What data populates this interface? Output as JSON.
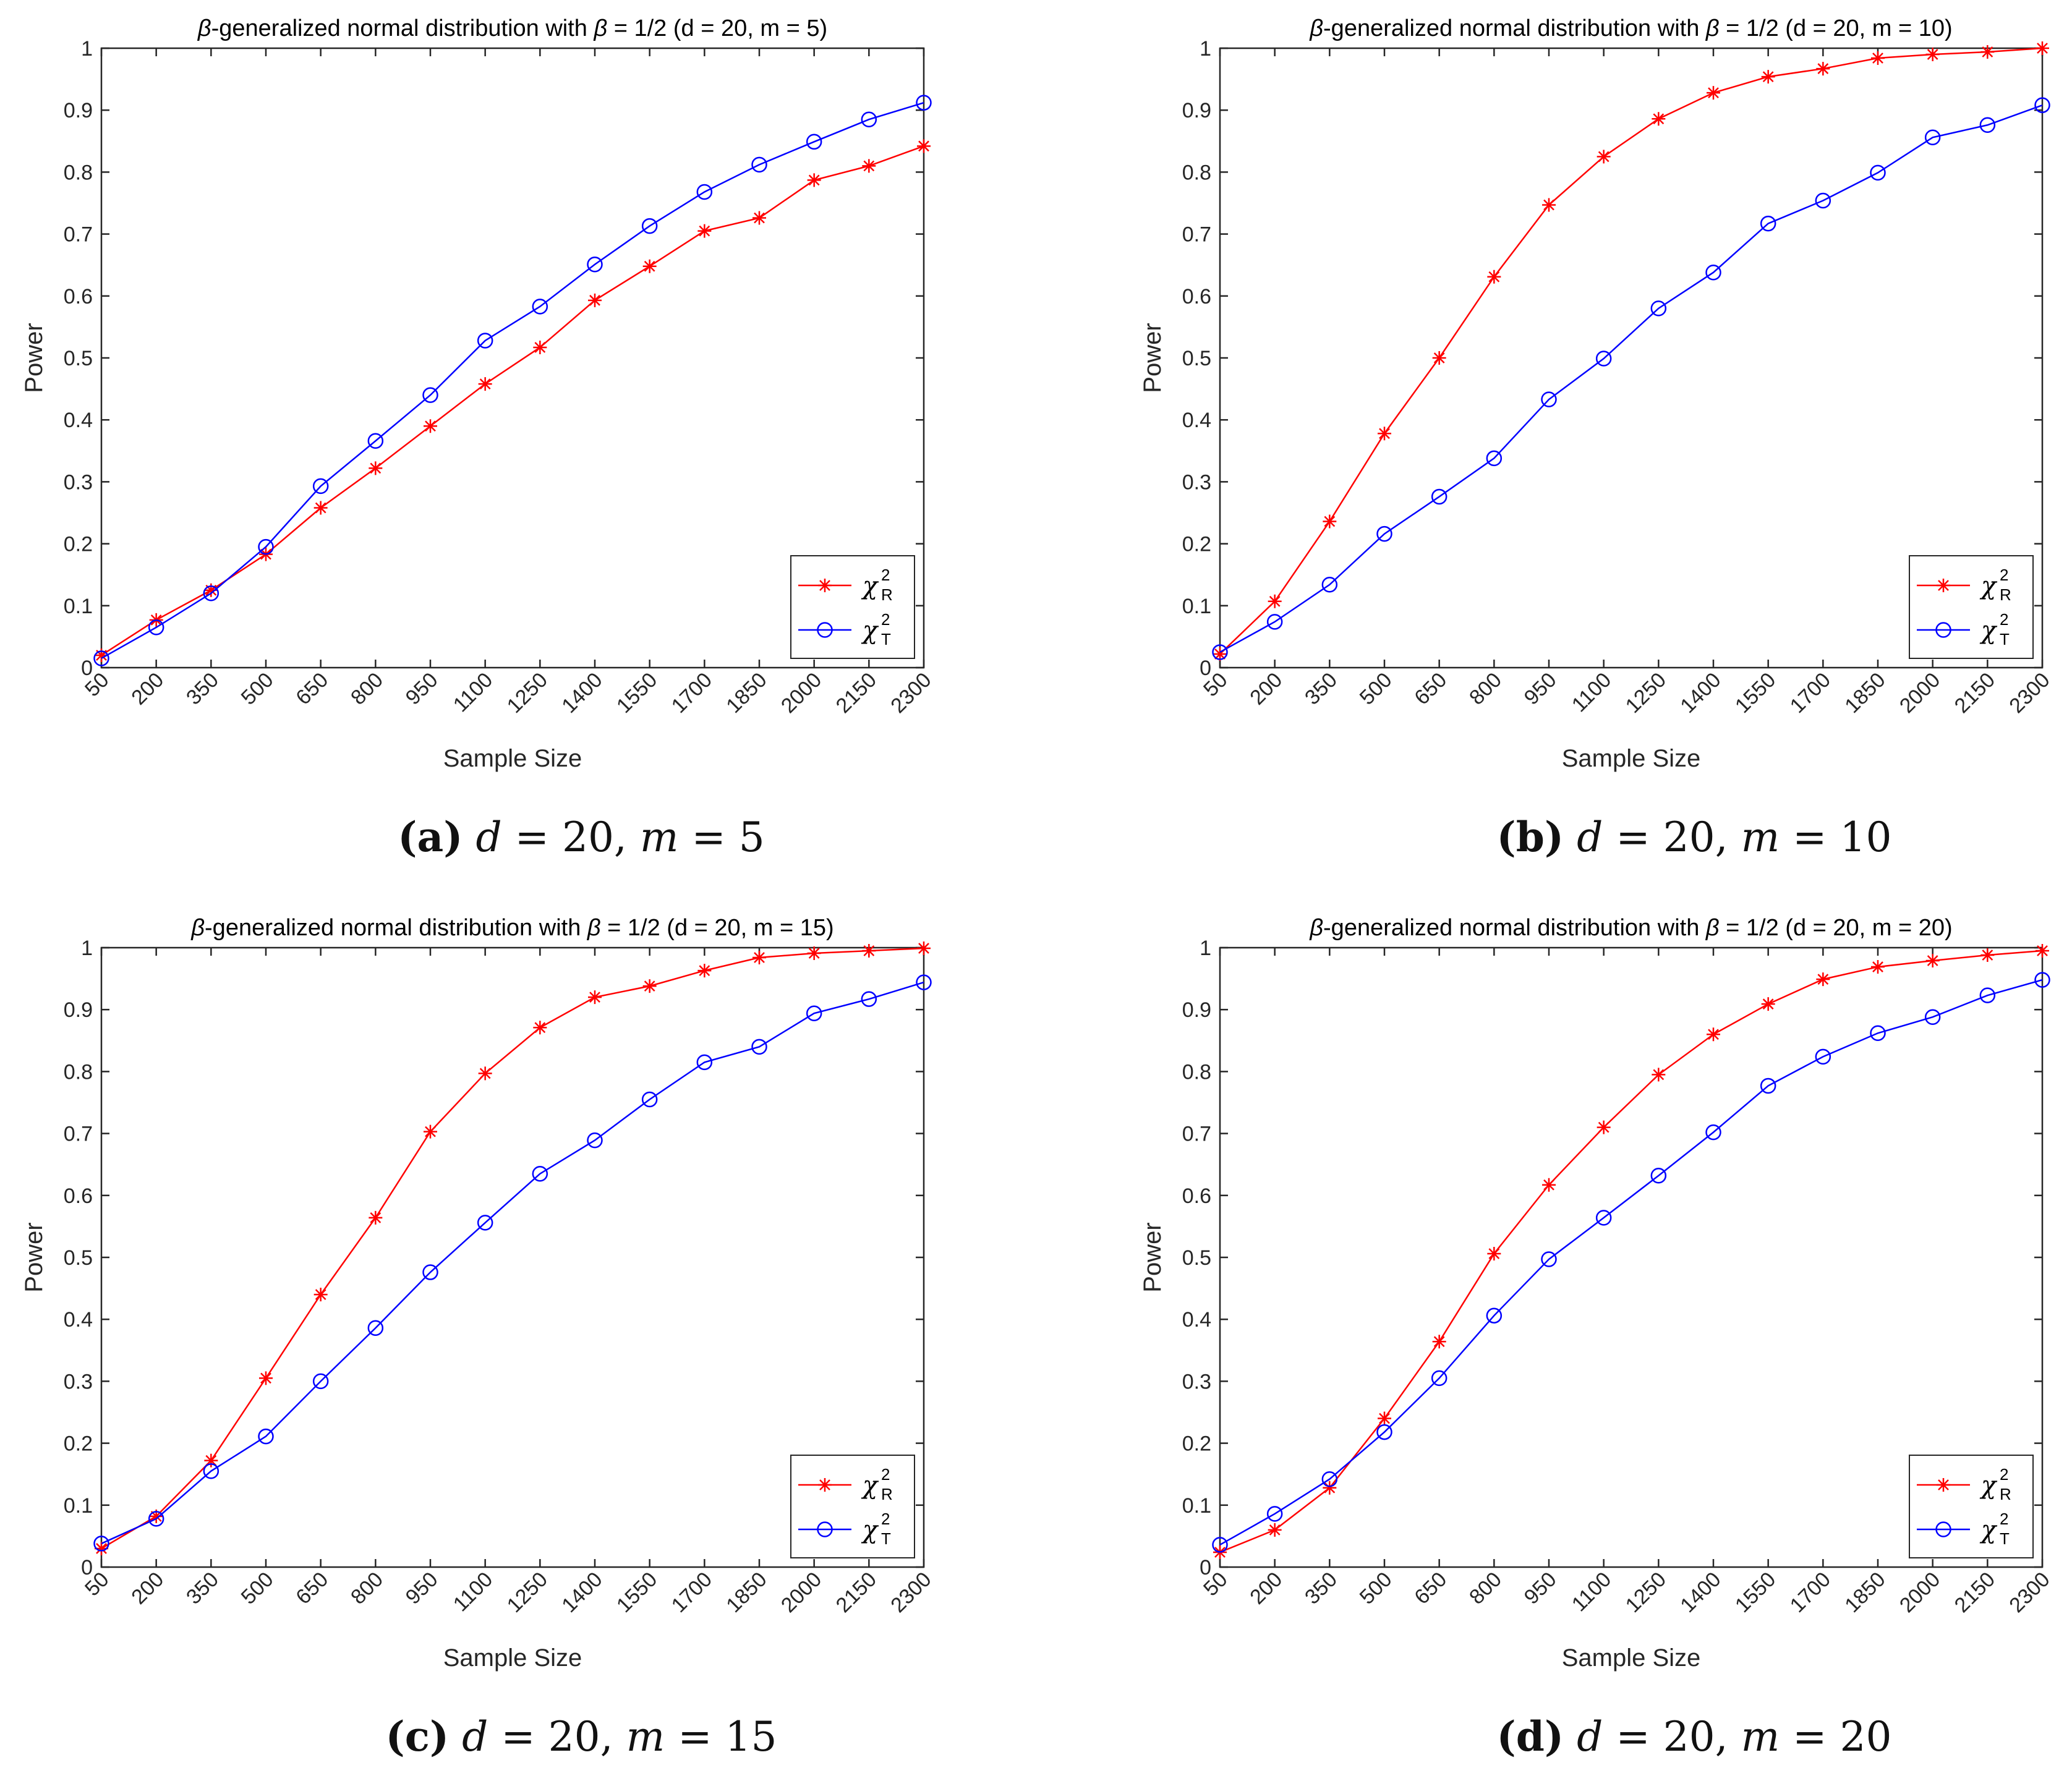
{
  "y_axis_label": "Power",
  "x_axis_label": "Sample Size",
  "legend_entries": [
    {
      "base": "χ",
      "sup": "2",
      "sub": "R",
      "color": "#ff0000",
      "marker": "asterisk"
    },
    {
      "base": "χ",
      "sup": "2",
      "sub": "T",
      "color": "#0000ff",
      "marker": "circle"
    }
  ],
  "captions": [
    {
      "letter": "(a)",
      "d_text": "d",
      "eq1": " = 20,",
      "m_text": "m",
      "eq2": " = 5"
    },
    {
      "letter": "(b)",
      "d_text": "d",
      "eq1": " = 20,",
      "m_text": "m",
      "eq2": " = 10"
    },
    {
      "letter": "(c)",
      "d_text": "d",
      "eq1": " = 20,",
      "m_text": "m",
      "eq2": " = 15"
    },
    {
      "letter": "(d)",
      "d_text": "d",
      "eq1": " = 20,",
      "m_text": "m",
      "eq2": " = 20"
    }
  ],
  "chart_data": [
    {
      "type": "line",
      "title": "β-generalized normal distribution with β = 1/2 (d = 20, m = 5)",
      "title_greek": "β",
      "title_rest": "-generalized normal distribution with ",
      "title_greek2": "β",
      "title_tail": " = 1/2 (d = 20, m = 5)",
      "xlabel": "Sample Size",
      "ylabel": "Power",
      "ylim": [
        0,
        1
      ],
      "yticks": [
        "0",
        "0.1",
        "0.2",
        "0.3",
        "0.4",
        "0.5",
        "0.6",
        "0.7",
        "0.8",
        "0.9",
        "1"
      ],
      "categories": [
        "50",
        "200",
        "350",
        "500",
        "650",
        "800",
        "950",
        "1100",
        "1250",
        "1400",
        "1550",
        "1700",
        "1850",
        "2000",
        "2150",
        "2300"
      ],
      "legend_position": "bottom-right",
      "series": [
        {
          "name": "χ²R",
          "color": "#ff0000",
          "marker": "asterisk",
          "values": [
            0.02,
            0.077,
            0.125,
            0.183,
            0.258,
            0.322,
            0.39,
            0.458,
            0.517,
            0.593,
            0.648,
            0.705,
            0.726,
            0.787,
            0.81,
            0.842
          ]
        },
        {
          "name": "χ²T",
          "color": "#0000ff",
          "marker": "circle",
          "values": [
            0.015,
            0.065,
            0.12,
            0.195,
            0.293,
            0.366,
            0.44,
            0.528,
            0.583,
            0.651,
            0.713,
            0.768,
            0.812,
            0.849,
            0.885,
            0.912
          ]
        }
      ]
    },
    {
      "type": "line",
      "title": "β-generalized normal distribution with β = 1/2 (d = 20, m = 10)",
      "title_greek": "β",
      "title_rest": "-generalized normal distribution with ",
      "title_greek2": "β",
      "title_tail": " = 1/2 (d = 20, m = 10)",
      "xlabel": "Sample Size",
      "ylabel": "Power",
      "ylim": [
        0,
        1
      ],
      "yticks": [
        "0",
        "0.1",
        "0.2",
        "0.3",
        "0.4",
        "0.5",
        "0.6",
        "0.7",
        "0.8",
        "0.9",
        "1"
      ],
      "categories": [
        "50",
        "200",
        "350",
        "500",
        "650",
        "800",
        "950",
        "1100",
        "1250",
        "1400",
        "1550",
        "1700",
        "1850",
        "2000",
        "2150",
        "2300"
      ],
      "legend_position": "bottom-right",
      "series": [
        {
          "name": "χ²R",
          "color": "#ff0000",
          "marker": "asterisk",
          "values": [
            0.022,
            0.107,
            0.236,
            0.378,
            0.5,
            0.631,
            0.747,
            0.825,
            0.886,
            0.928,
            0.954,
            0.967,
            0.984,
            0.99,
            0.994,
            1.0
          ]
        },
        {
          "name": "χ²T",
          "color": "#0000ff",
          "marker": "circle",
          "values": [
            0.025,
            0.074,
            0.134,
            0.216,
            0.276,
            0.338,
            0.433,
            0.499,
            0.58,
            0.638,
            0.717,
            0.754,
            0.799,
            0.856,
            0.876,
            0.908
          ]
        }
      ]
    },
    {
      "type": "line",
      "title": "β-generalized normal distribution with β = 1/2 (d = 20, m = 15)",
      "title_greek": "β",
      "title_rest": "-generalized normal distribution with ",
      "title_greek2": "β",
      "title_tail": " = 1/2 (d = 20, m = 15)",
      "xlabel": "Sample Size",
      "ylabel": "Power",
      "ylim": [
        0,
        1
      ],
      "yticks": [
        "0",
        "0.1",
        "0.2",
        "0.3",
        "0.4",
        "0.5",
        "0.6",
        "0.7",
        "0.8",
        "0.9",
        "1"
      ],
      "categories": [
        "50",
        "200",
        "350",
        "500",
        "650",
        "800",
        "950",
        "1100",
        "1250",
        "1400",
        "1550",
        "1700",
        "1850",
        "2000",
        "2150",
        "2300"
      ],
      "legend_position": "bottom-right",
      "series": [
        {
          "name": "χ²R",
          "color": "#ff0000",
          "marker": "asterisk",
          "values": [
            0.03,
            0.082,
            0.172,
            0.305,
            0.44,
            0.564,
            0.703,
            0.797,
            0.871,
            0.92,
            0.938,
            0.963,
            0.984,
            0.991,
            0.995,
            0.999
          ]
        },
        {
          "name": "χ²T",
          "color": "#0000ff",
          "marker": "circle",
          "values": [
            0.038,
            0.078,
            0.155,
            0.211,
            0.3,
            0.386,
            0.476,
            0.556,
            0.635,
            0.689,
            0.755,
            0.815,
            0.84,
            0.894,
            0.917,
            0.944
          ]
        }
      ]
    },
    {
      "type": "line",
      "title": "β-generalized normal distribution with β = 1/2 (d = 20, m = 20)",
      "title_greek": "β",
      "title_rest": "-generalized normal distribution with ",
      "title_greek2": "β",
      "title_tail": " = 1/2 (d = 20, m = 20)",
      "xlabel": "Sample Size",
      "ylabel": "Power",
      "ylim": [
        0,
        1
      ],
      "yticks": [
        "0",
        "0.1",
        "0.2",
        "0.3",
        "0.4",
        "0.5",
        "0.6",
        "0.7",
        "0.8",
        "0.9",
        "1"
      ],
      "categories": [
        "50",
        "200",
        "350",
        "500",
        "650",
        "800",
        "950",
        "1100",
        "1250",
        "1400",
        "1550",
        "1700",
        "1850",
        "2000",
        "2150",
        "2300"
      ],
      "legend_position": "bottom-right",
      "series": [
        {
          "name": "χ²R",
          "color": "#ff0000",
          "marker": "asterisk",
          "values": [
            0.024,
            0.06,
            0.128,
            0.24,
            0.364,
            0.506,
            0.617,
            0.71,
            0.795,
            0.86,
            0.909,
            0.949,
            0.969,
            0.979,
            0.988,
            0.995
          ]
        },
        {
          "name": "χ²T",
          "color": "#0000ff",
          "marker": "circle",
          "values": [
            0.036,
            0.086,
            0.142,
            0.218,
            0.305,
            0.406,
            0.497,
            0.564,
            0.632,
            0.702,
            0.777,
            0.824,
            0.862,
            0.888,
            0.923,
            0.948
          ]
        }
      ]
    }
  ]
}
